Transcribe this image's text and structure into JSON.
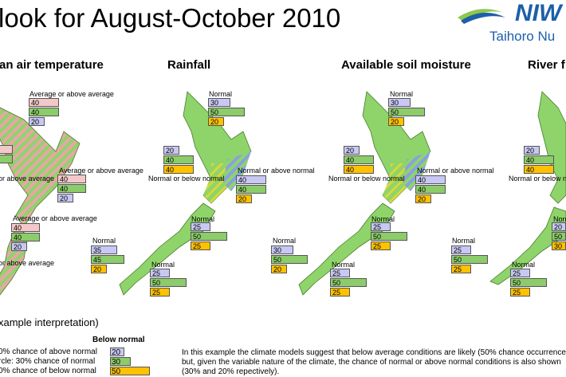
{
  "title": "look for August-October 2010",
  "logo_main": "NIW",
  "logo_sub": "Taihoro Nu",
  "panels": [
    {
      "header": "an air temperature",
      "groups": [
        {
          "label": "Average or above average",
          "values": [
            "40",
            "40",
            "20"
          ]
        },
        {
          "label": "Average or above average",
          "values": [
            "40",
            "40",
            "20"
          ]
        },
        {
          "label": "Average or above average",
          "values": [
            "40",
            "40",
            "20"
          ]
        },
        {
          "label": "or above average",
          "values": []
        },
        {
          "label": "or above average",
          "values": []
        }
      ]
    },
    {
      "header": "Rainfall",
      "groups": [
        {
          "label": "Normal",
          "values": [
            "30",
            "50",
            "20"
          ]
        },
        {
          "label": "",
          "values": [
            "20",
            "40",
            "40"
          ]
        },
        {
          "label": "Normal or above normal",
          "values": [
            "40",
            "40",
            "20"
          ]
        },
        {
          "label": "Normal or below normal",
          "values": []
        },
        {
          "label": "Normal",
          "values": [
            "25",
            "50",
            "25"
          ]
        },
        {
          "label": "Normal",
          "values": [
            "35",
            "45",
            "20"
          ]
        },
        {
          "label": "Normal",
          "values": [
            "25",
            "50",
            "25"
          ]
        }
      ]
    },
    {
      "header": "Available soil moisture",
      "groups": [
        {
          "label": "Normal",
          "values": [
            "30",
            "50",
            "20"
          ]
        },
        {
          "label": "",
          "values": [
            "20",
            "40",
            "40"
          ]
        },
        {
          "label": "Normal or above normal",
          "values": [
            "40",
            "40",
            "20"
          ]
        },
        {
          "label": "Normal or below normal",
          "values": []
        },
        {
          "label": "Normal",
          "values": [
            "25",
            "50",
            "25"
          ]
        },
        {
          "label": "Normal",
          "values": [
            "30",
            "50",
            "20"
          ]
        },
        {
          "label": "Normal",
          "values": [
            "25",
            "50",
            "25"
          ]
        }
      ]
    },
    {
      "header": "River f",
      "groups": [
        {
          "label": "",
          "values": [
            "20",
            "40",
            "40"
          ]
        },
        {
          "label": "Normal or below normal",
          "values": []
        },
        {
          "label": "Norma",
          "values": [
            "20",
            "50",
            "30"
          ]
        },
        {
          "label": "Normal",
          "values": [
            "25",
            "50",
            "25"
          ]
        },
        {
          "label": "Normal",
          "values": [
            "25",
            "50",
            "25"
          ]
        }
      ]
    }
  ],
  "example": {
    "title": "xample interpretation)",
    "heading": "Below normal",
    "lines": [
      {
        "text": "0% chance of above normal",
        "value": "20"
      },
      {
        "text": "rcle: 30% chance of normal",
        "value": "30"
      },
      {
        "text": "0% chance of below normal",
        "value": "50"
      }
    ],
    "explanation": "In this example the climate models suggest that below average conditions are likely (50% chance occurrence), but, given the variable nature of the climate, the chance of normal or above normal conditions is also shown (30% and 20% repectively)."
  },
  "colors": {
    "land": "#8ed46a",
    "above": "#f4c8c8",
    "normal": "#c8c8f4",
    "near_below": "#8ccc6a",
    "below": "#ffc200",
    "logo_blue": "#1d5fa8"
  }
}
